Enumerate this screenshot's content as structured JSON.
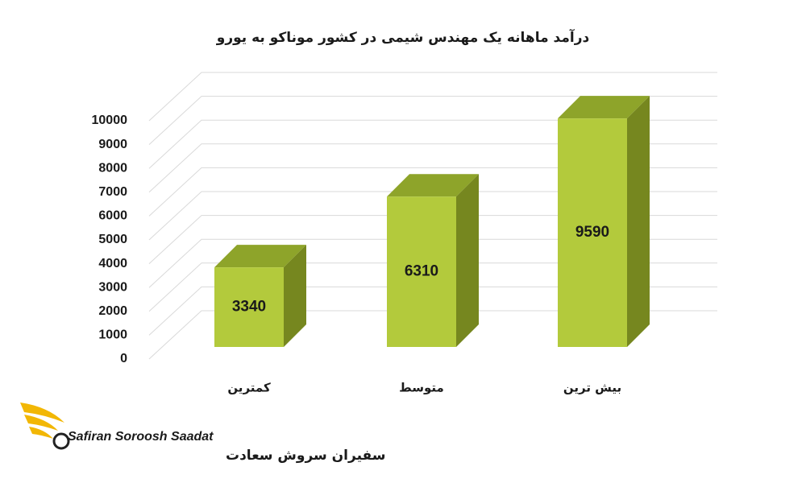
{
  "chart_data": {
    "type": "bar3d",
    "title": "درآمد ماهانه یک مهندس شیمی در کشور موناکو به یورو",
    "categories": [
      "کمترین",
      "متوسط",
      "بیش ترین"
    ],
    "values": [
      3340,
      6310,
      9590
    ],
    "color": "#b3ca3c",
    "ylim": [
      0,
      10000
    ],
    "yticks": [
      0,
      1000,
      2000,
      3000,
      4000,
      5000,
      6000,
      7000,
      8000,
      9000,
      10000
    ],
    "grid": true
  },
  "logo": {
    "name_en": "Safiran Soroosh Saadat",
    "name_fa": "سفیران سروش سعادت"
  }
}
